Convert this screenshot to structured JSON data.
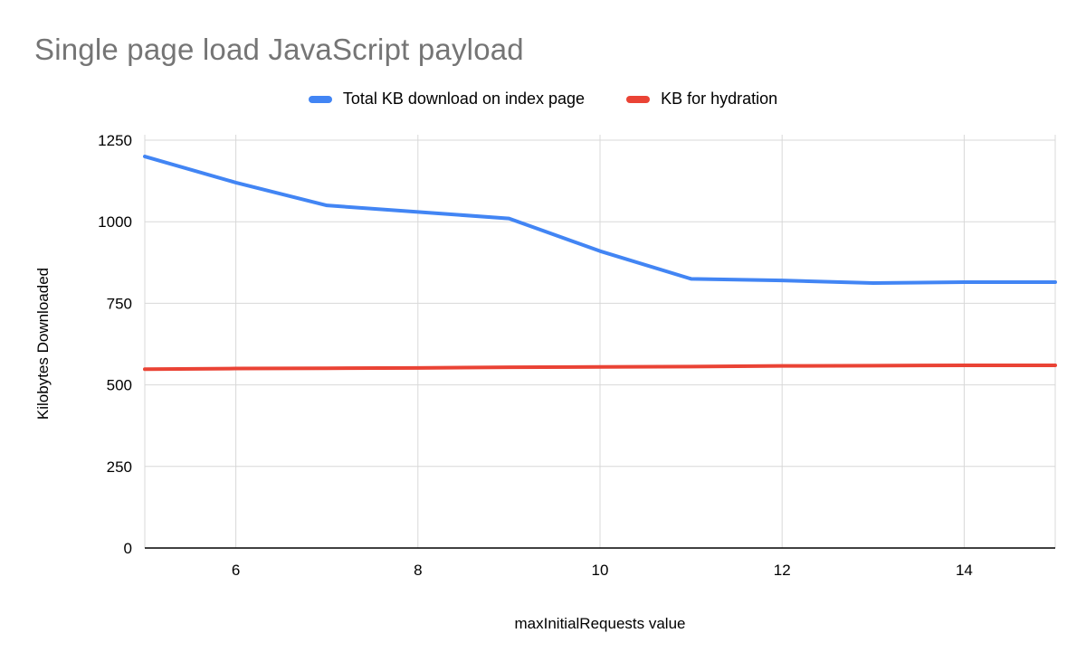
{
  "header": {
    "title": "Single page load JavaScript payload"
  },
  "chart_data": {
    "type": "line",
    "title": "Single page load JavaScript payload",
    "xlabel": "maxInitialRequests value",
    "ylabel": "Kilobytes Downloaded",
    "xlim": [
      5,
      15
    ],
    "ylim": [
      0,
      1250
    ],
    "xticks": [
      6,
      8,
      10,
      12,
      14
    ],
    "yticks": [
      0,
      250,
      500,
      750,
      1000,
      1250
    ],
    "grid": true,
    "legend_position": "top",
    "x": [
      5,
      6,
      7,
      8,
      9,
      10,
      11,
      12,
      13,
      14,
      15
    ],
    "series": [
      {
        "name": "Total KB download on index page",
        "color": "#4285f4",
        "values": [
          1200,
          1120,
          1050,
          1030,
          1010,
          910,
          825,
          820,
          812,
          815,
          815
        ]
      },
      {
        "name": "KB for hydration",
        "color": "#ea4335",
        "values": [
          548,
          550,
          551,
          552,
          554,
          555,
          556,
          558,
          559,
          560,
          560
        ]
      }
    ],
    "colors": {
      "grid": "#d8d8d8",
      "axis": "#000000",
      "title": "#757575"
    }
  }
}
